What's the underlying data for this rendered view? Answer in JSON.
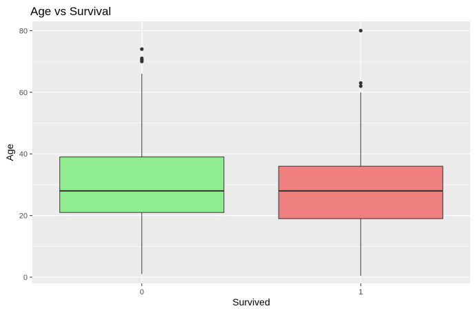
{
  "chart_data": {
    "type": "box",
    "title": "Age vs Survival",
    "xlabel": "Survived",
    "ylabel": "Age",
    "categories": [
      "0",
      "1"
    ],
    "ylim": [
      -2,
      83
    ],
    "yticks": [
      0,
      20,
      40,
      60,
      80
    ],
    "grid": true,
    "legend": "none",
    "boxes": [
      {
        "category": "0",
        "color": "#90EE90",
        "min": 1,
        "q1": 21,
        "median": 28,
        "q3": 39,
        "max": 66,
        "outliers": [
          70,
          70.5,
          71,
          74
        ]
      },
      {
        "category": "1",
        "color": "#F08080",
        "min": 0.42,
        "q1": 19,
        "median": 28,
        "q3": 36,
        "max": 60,
        "outliers": [
          62,
          63,
          80
        ]
      }
    ]
  }
}
